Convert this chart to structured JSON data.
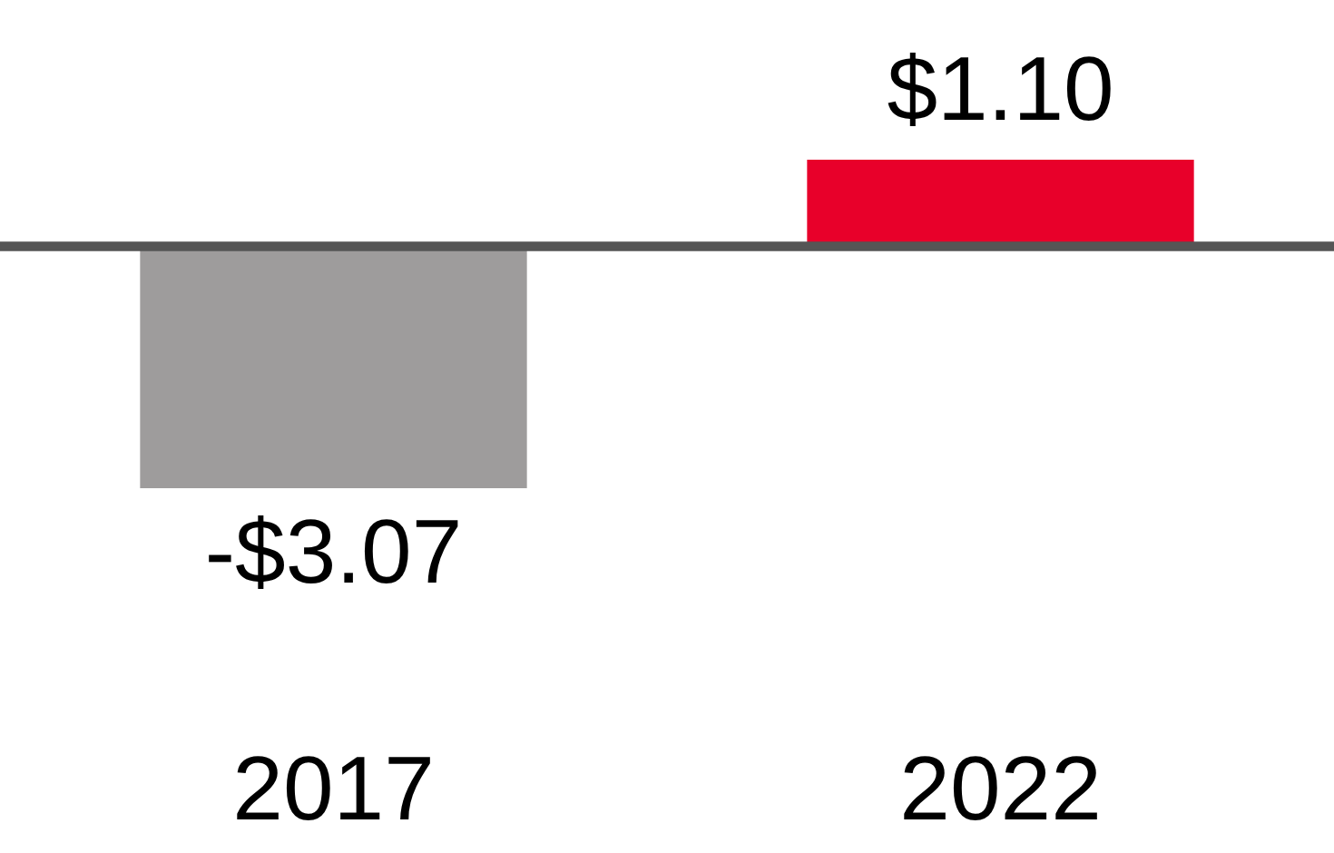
{
  "chart_data": {
    "type": "bar",
    "categories": [
      "2017",
      "2022"
    ],
    "values": [
      -3.07,
      1.1
    ],
    "colors": [
      "#9e9c9c",
      "#e8002a"
    ],
    "value_labels": [
      "-$3.07",
      "$1.10"
    ],
    "tick_labels": "x"
  }
}
